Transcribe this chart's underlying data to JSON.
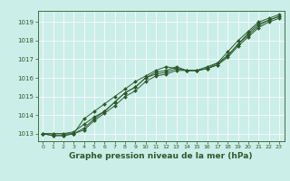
{
  "title": "Graphe pression niveau de la mer (hPa)",
  "background_color": "#cceee8",
  "line_color": "#2d5a2d",
  "xlim": [
    -0.5,
    23.5
  ],
  "ylim": [
    1012.6,
    1019.6
  ],
  "yticks": [
    1013,
    1014,
    1015,
    1016,
    1017,
    1018,
    1019
  ],
  "xticks": [
    0,
    1,
    2,
    3,
    4,
    5,
    6,
    7,
    8,
    9,
    10,
    11,
    12,
    13,
    14,
    15,
    16,
    17,
    18,
    19,
    20,
    21,
    22,
    23
  ],
  "series": [
    [
      1013.0,
      1013.0,
      1013.0,
      1013.1,
      1013.5,
      1013.9,
      1014.2,
      1014.7,
      1015.2,
      1015.5,
      1016.0,
      1016.2,
      1016.3,
      1016.5,
      1016.4,
      1016.4,
      1016.5,
      1016.7,
      1017.2,
      1017.8,
      1018.3,
      1018.8,
      1019.1,
      1019.3
    ],
    [
      1013.0,
      1013.0,
      1013.0,
      1013.0,
      1013.2,
      1013.7,
      1014.1,
      1014.5,
      1015.0,
      1015.3,
      1015.8,
      1016.1,
      1016.2,
      1016.4,
      1016.4,
      1016.4,
      1016.5,
      1016.7,
      1017.1,
      1017.7,
      1018.2,
      1018.7,
      1019.0,
      1019.2
    ],
    [
      1013.0,
      1012.9,
      1012.9,
      1013.0,
      1013.8,
      1014.2,
      1014.6,
      1015.0,
      1015.4,
      1015.8,
      1016.1,
      1016.4,
      1016.6,
      1016.5,
      1016.4,
      1016.4,
      1016.6,
      1016.8,
      1017.4,
      1018.0,
      1018.5,
      1019.0,
      1019.2,
      1019.4
    ],
    [
      1013.0,
      1012.9,
      1012.9,
      1013.0,
      1013.3,
      1013.8,
      1014.2,
      1014.7,
      1015.2,
      1015.5,
      1016.0,
      1016.3,
      1016.4,
      1016.6,
      1016.4,
      1016.4,
      1016.5,
      1016.8,
      1017.2,
      1017.8,
      1018.4,
      1018.9,
      1019.1,
      1019.3
    ]
  ],
  "ylabel_fontsize": 5.5,
  "xlabel_fontsize": 6.0,
  "title_fontsize": 6.5
}
